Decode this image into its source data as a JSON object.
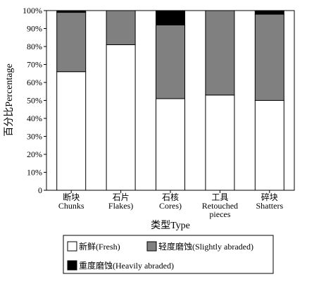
{
  "chart_data": {
    "type": "bar",
    "stacked": true,
    "categories": [
      [
        "断块",
        "Chunks"
      ],
      [
        "石片",
        "Flakes)"
      ],
      [
        "石核",
        "Cores)"
      ],
      [
        "工具",
        "Retouched",
        "pieces"
      ],
      [
        "碎块",
        "Shatters"
      ]
    ],
    "series": [
      {
        "name": "新鲜(Fresh)",
        "color": "#ffffff",
        "values": [
          66,
          81,
          51,
          53,
          50
        ]
      },
      {
        "name": "轻度磨蚀(Slightly abraded)",
        "color": "#808080",
        "values": [
          33,
          19,
          41,
          47,
          48
        ]
      },
      {
        "name": "重度磨蚀(Heavily abraded)",
        "color": "#000000",
        "values": [
          1,
          0,
          8,
          0,
          2
        ]
      }
    ],
    "ylim": [
      0,
      100
    ],
    "yticks": [
      "0",
      "10%",
      "20%",
      "30%",
      "40%",
      "50%",
      "60%",
      "70%",
      "80%",
      "90%",
      "100%"
    ],
    "xlabel": "类型Type",
    "ylabel": "百分比Percentage",
    "legend_position": "bottom"
  }
}
